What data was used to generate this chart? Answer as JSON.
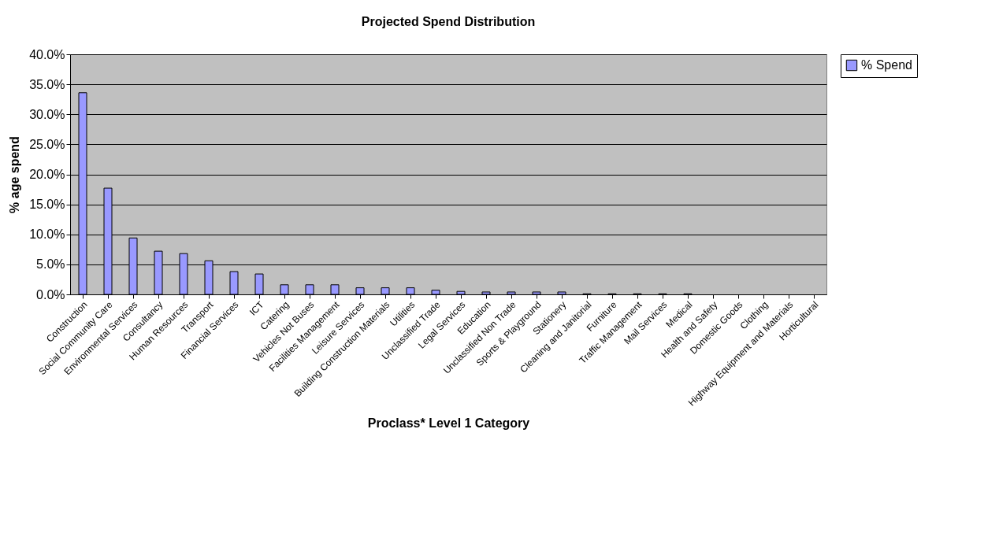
{
  "chart_data": {
    "type": "bar",
    "title": "Projected Spend Distribution",
    "xlabel": "Proclass* Level 1 Category",
    "ylabel": "% age spend",
    "categories": [
      "Construction",
      "Social Community Care",
      "Environmental Services",
      "Consultancy",
      "Human Resources",
      "Transport",
      "Financial Services",
      "ICT",
      "Catering",
      "Vehicles Not Buses",
      "Facilities Management",
      "Leisure Services",
      "Building Construction Materials",
      "Utilities",
      "Unclassified Trade",
      "Legal Services",
      "Education",
      "Unclassified Non Trade",
      "Sports & Playground",
      "Stationery",
      "Cleaning and Janitorial",
      "Furniture",
      "Traffic Management",
      "Mail Services",
      "Medical",
      "Health and Safety",
      "Domestic Goods",
      "Clothing",
      "Highway Equipment and Materials",
      "Horticultural"
    ],
    "series": [
      {
        "name": "% Spend",
        "color": "#9999ff",
        "values": [
          33.6,
          17.7,
          9.4,
          7.2,
          6.8,
          5.6,
          3.8,
          3.4,
          1.6,
          1.6,
          1.6,
          1.1,
          1.1,
          1.1,
          0.7,
          0.5,
          0.4,
          0.4,
          0.4,
          0.4,
          0.1,
          0.1,
          0.1,
          0.1,
          0.1,
          0,
          0,
          0,
          0,
          0
        ]
      }
    ],
    "ylim": [
      0,
      40
    ],
    "yticks": [
      {
        "value": 0,
        "label": "0.0%"
      },
      {
        "value": 5,
        "label": "5.0%"
      },
      {
        "value": 10,
        "label": "10.0%"
      },
      {
        "value": 15,
        "label": "15.0%"
      },
      {
        "value": 20,
        "label": "20.0%"
      },
      {
        "value": 25,
        "label": "25.0%"
      },
      {
        "value": 30,
        "label": "30.0%"
      },
      {
        "value": 35,
        "label": "35.0%"
      },
      {
        "value": 40,
        "label": "40.0%"
      }
    ],
    "grid": "y",
    "legend": "right"
  }
}
